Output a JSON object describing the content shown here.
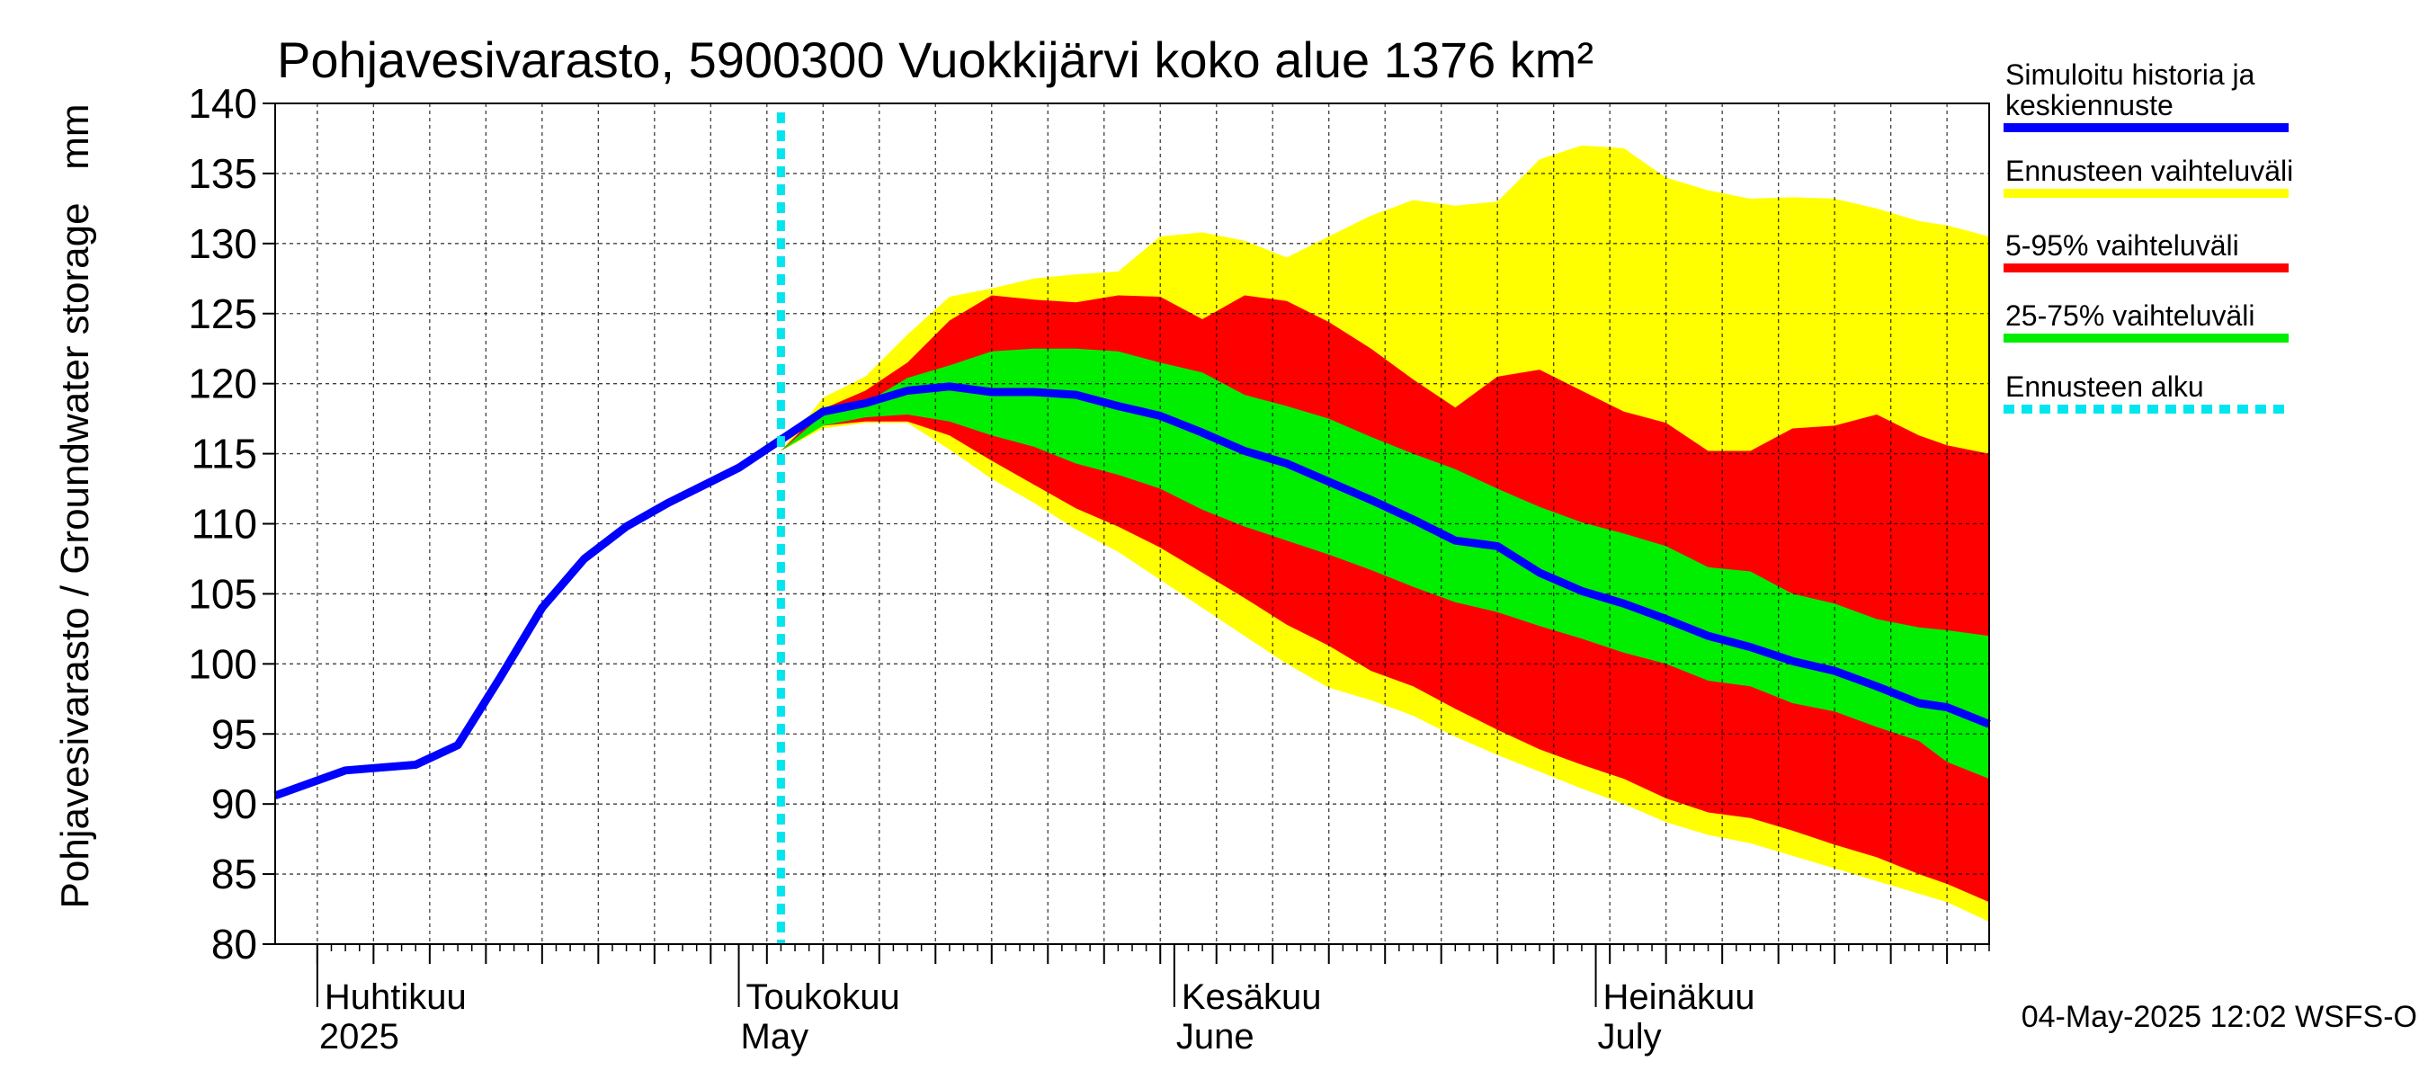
{
  "chart_data": {
    "type": "area",
    "title": "Pohjavesivarasto, 5900300 Vuokkijärvi koko alue 1376 km²",
    "ylabel": "Pohjavesivarasto / Groundwater storage   mm",
    "ylim": [
      80,
      140
    ],
    "yticks": [
      80,
      85,
      90,
      95,
      100,
      105,
      110,
      115,
      120,
      125,
      130,
      135,
      140
    ],
    "xlim": [
      "2025-03-29",
      "2025-07-29"
    ],
    "grid": true,
    "legend_position": "right",
    "forecast_start": "2025-05-04",
    "month_labels": [
      {
        "date": "2025-04-01",
        "fi": "Huhtikuu",
        "en": "2025"
      },
      {
        "date": "2025-05-01",
        "fi": "Toukokuu",
        "en": "May"
      },
      {
        "date": "2025-06-01",
        "fi": "Kesäkuu",
        "en": "June"
      },
      {
        "date": "2025-07-01",
        "fi": "Heinäkuu",
        "en": "July"
      }
    ],
    "footer": "04-May-2025 12:02 WSFS-O",
    "x": [
      "2025-03-29",
      "2025-04-03",
      "2025-04-08",
      "2025-04-11",
      "2025-04-14",
      "2025-04-17",
      "2025-04-20",
      "2025-04-23",
      "2025-04-26",
      "2025-04-29",
      "2025-05-01",
      "2025-05-04",
      "2025-05-07",
      "2025-05-10",
      "2025-05-13",
      "2025-05-16",
      "2025-05-19",
      "2025-05-22",
      "2025-05-25",
      "2025-05-28",
      "2025-05-31",
      "2025-06-03",
      "2025-06-06",
      "2025-06-09",
      "2025-06-12",
      "2025-06-15",
      "2025-06-18",
      "2025-06-21",
      "2025-06-24",
      "2025-06-27",
      "2025-06-30",
      "2025-07-03",
      "2025-07-06",
      "2025-07-09",
      "2025-07-12",
      "2025-07-15",
      "2025-07-18",
      "2025-07-21",
      "2025-07-24",
      "2025-07-26",
      "2025-07-29"
    ],
    "series": [
      {
        "name": "Simuloitu historia ja keskiennuste",
        "color": "#0000ff",
        "values": [
          90.6,
          92.4,
          92.8,
          94.2,
          99,
          104,
          107.5,
          109.8,
          111.5,
          113,
          114,
          116,
          118,
          118.6,
          119.5,
          119.8,
          119.4,
          119.4,
          119.2,
          118.4,
          117.7,
          116.5,
          115.2,
          114.3,
          113,
          111.7,
          110.3,
          108.8,
          108.4,
          106.5,
          105.2,
          104.3,
          103.2,
          102,
          101.2,
          100.2,
          99.5,
          98.4,
          97.2,
          96.9,
          95.7
        ]
      },
      {
        "name": "Ennusteen vaihteluväli",
        "color": "#ffff00",
        "upper": [
          null,
          null,
          null,
          null,
          null,
          null,
          null,
          null,
          null,
          null,
          null,
          115.2,
          119,
          120.5,
          123.5,
          126.2,
          126.8,
          127.5,
          127.8,
          128,
          130.5,
          130.8,
          130.2,
          129,
          130.5,
          132,
          133.1,
          132.7,
          133,
          136,
          137,
          136.8,
          134.7,
          133.8,
          133.2,
          133.3,
          133.2,
          132.5,
          131.6,
          131.3,
          130.5
        ],
        "lower": [
          null,
          null,
          null,
          null,
          null,
          null,
          null,
          null,
          null,
          null,
          null,
          115.2,
          116.8,
          117.2,
          117.2,
          115.3,
          113.2,
          111.5,
          109.6,
          108,
          106,
          104,
          102,
          100,
          98.3,
          97.4,
          96.3,
          94.8,
          93.5,
          92.3,
          91.1,
          90,
          88.7,
          87.8,
          87.2,
          86.3,
          85.4,
          84.5,
          83.6,
          83,
          81.6
        ]
      },
      {
        "name": "5-95% vaihteluväli",
        "color": "#ff0000",
        "upper": [
          null,
          null,
          null,
          null,
          null,
          null,
          null,
          null,
          null,
          null,
          null,
          115.2,
          118.2,
          119.5,
          121.5,
          124.5,
          126.3,
          126,
          125.8,
          126.3,
          126.2,
          124.6,
          126.3,
          125.9,
          124.4,
          122.5,
          120.3,
          118.3,
          120.5,
          121,
          119.5,
          118,
          117.2,
          115.2,
          115.2,
          116.8,
          117,
          117.8,
          116.3,
          115.6,
          115
        ]
      },
      {
        "name": "25-75% vaihteluväli",
        "color": "#00ee00",
        "upper": [
          null,
          null,
          null,
          null,
          null,
          null,
          null,
          null,
          null,
          null,
          null,
          115.2,
          117.8,
          118.6,
          120.4,
          121.3,
          122.3,
          122.5,
          122.5,
          122.3,
          121.5,
          120.8,
          119.2,
          118.4,
          117.5,
          116.2,
          115,
          113.9,
          112.5,
          111.2,
          110.1,
          109.3,
          108.4,
          106.9,
          106.6,
          105,
          104.3,
          103.2,
          102.6,
          102.4,
          102
        ]
      },
      {
        "name": "25-75% vaihteluväli (lower)",
        "color": "#00ee00",
        "lower": [
          null,
          null,
          null,
          null,
          null,
          null,
          null,
          null,
          null,
          null,
          null,
          115.2,
          117,
          117.6,
          117.8,
          117.3,
          116.3,
          115.5,
          114.3,
          113.5,
          112.5,
          111,
          109.8,
          108.8,
          107.8,
          106.7,
          105.5,
          104.4,
          103.7,
          102.7,
          101.8,
          100.8,
          100,
          98.8,
          98.4,
          97.2,
          96.6,
          95.5,
          94.5,
          93,
          91.8
        ]
      },
      {
        "name": "5-95% vaihteluväli (lower)",
        "color": "#ff0000",
        "lower": [
          null,
          null,
          null,
          null,
          null,
          null,
          null,
          null,
          null,
          null,
          null,
          115.2,
          117,
          117.3,
          117.3,
          116.3,
          114.5,
          112.8,
          111.1,
          109.8,
          108.3,
          106.5,
          104.7,
          102.8,
          101.3,
          99.5,
          98.4,
          96.8,
          95.3,
          93.9,
          92.8,
          91.8,
          90.4,
          89.4,
          89,
          88.1,
          87.1,
          86.2,
          85,
          84.3,
          83
        ]
      },
      {
        "name": "Ennusteen alku",
        "color": "#00e5ee"
      }
    ]
  },
  "legend": [
    {
      "label_lines": [
        "Simuloitu historia ja",
        "keskiennuste"
      ],
      "color": "#0000ff",
      "style": "solid"
    },
    {
      "label_lines": [
        "Ennusteen vaihteluväli"
      ],
      "color": "#ffff00",
      "style": "solid"
    },
    {
      "label_lines": [
        "5-95% vaihteluväli"
      ],
      "color": "#ff0000",
      "style": "solid"
    },
    {
      "label_lines": [
        "25-75% vaihteluväli"
      ],
      "color": "#00ee00",
      "style": "solid"
    },
    {
      "label_lines": [
        "Ennusteen alku"
      ],
      "color": "#00e5ee",
      "style": "dotted"
    }
  ]
}
